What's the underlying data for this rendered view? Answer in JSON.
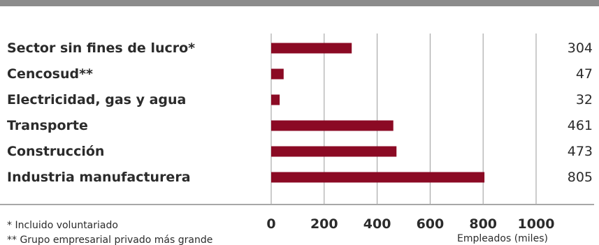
{
  "colors": {
    "bar": "#8b0a24",
    "grid": "#9a9a9a",
    "header_rule": "#8c8c8c",
    "text": "#2b2b2b"
  },
  "chart_data": {
    "type": "bar",
    "orientation": "horizontal",
    "title": "",
    "categories": [
      "Sector sin fines de lucro*",
      "Cencosud**",
      "Electricidad, gas y agua",
      "Transporte",
      "Construcción",
      "Industria manufacturera"
    ],
    "values": [
      304,
      47,
      32,
      461,
      473,
      805
    ],
    "value_labels": [
      "304",
      "47",
      "32",
      "461",
      "473",
      "805"
    ],
    "xlim": [
      0,
      1000
    ],
    "xticks": [
      0,
      200,
      400,
      600,
      800,
      1000
    ],
    "xtick_labels": [
      "0",
      "200",
      "400",
      "600",
      "800",
      "1000"
    ],
    "xlabel": "Empleados (miles)",
    "grid": true,
    "legend": "none"
  },
  "footnotes": [
    "* Incluido voluntariado",
    "** Grupo empresarial privado más grande"
  ]
}
